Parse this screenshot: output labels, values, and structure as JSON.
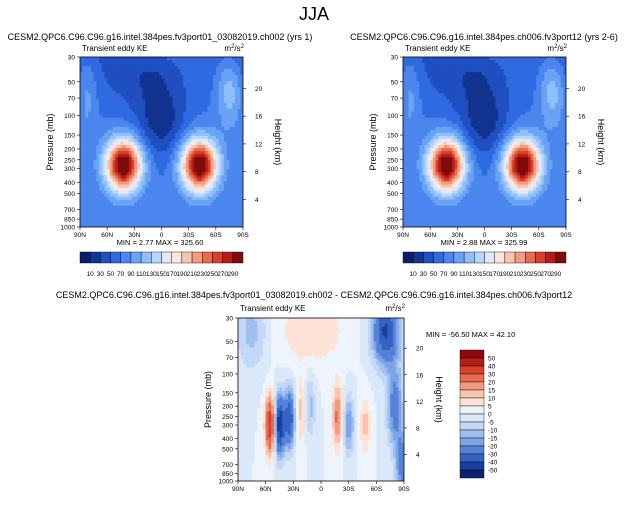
{
  "page_title": "JJA",
  "chart_data": [
    {
      "type": "heatmap",
      "title": "CESM2.QPC6.C96.C96.g16.intel.384pes.fv3port01_03082019.ch002 (yrs 1)",
      "subtitle": "Transient eddy KE",
      "units_base": "m",
      "units_exp": "2",
      "units_slash": "/s",
      "units_exp2": "2",
      "ylabel": "Pressure (mb)",
      "ylabel_right": "Height (km)",
      "xlabel": "",
      "x_ticks": [
        "90N",
        "60N",
        "30N",
        "0",
        "30S",
        "60S",
        "90S"
      ],
      "x_values": [
        90,
        60,
        30,
        0,
        -30,
        -60,
        -90
      ],
      "y_ticks": [
        "30",
        "50",
        "70",
        "100",
        "150",
        "200",
        "250",
        "300",
        "400",
        "500",
        "700",
        "850",
        "1000"
      ],
      "y_values": [
        30,
        50,
        70,
        100,
        150,
        200,
        250,
        300,
        400,
        500,
        700,
        850,
        1000
      ],
      "height_ticks": [
        "20",
        "16",
        "12",
        "8",
        "4"
      ],
      "height_values": [
        20,
        16,
        12,
        8,
        4
      ],
      "ylim": [
        1000,
        30
      ],
      "xlim": [
        90,
        -90
      ],
      "min_label": "MIN = ",
      "min_value": "2.77",
      "max_label": "MAX = ",
      "max_value": "325.60",
      "colorbar_levels": [
        "10",
        "30",
        "50",
        "70",
        "90",
        "110",
        "130",
        "150",
        "170",
        "190",
        "210",
        "230",
        "250",
        "270",
        "290"
      ],
      "field": {
        "kind": "ke",
        "background": 70,
        "features": [
          {
            "lat": 42,
            "p": 280,
            "amp": 250,
            "wlat": 14,
            "wp": 0.38
          },
          {
            "lat": -42,
            "p": 280,
            "amp": 250,
            "wlat": 14,
            "wp": 0.38
          },
          {
            "lat": 0,
            "p": 120,
            "amp": -45,
            "wlat": 18,
            "wp": 0.5
          },
          {
            "lat": 10,
            "p": 40,
            "amp": -55,
            "wlat": 30,
            "wp": 0.6
          },
          {
            "lat": -75,
            "p": 60,
            "amp": 60,
            "wlat": 10,
            "wp": 0.5
          },
          {
            "lat": 82,
            "p": 60,
            "amp": 35,
            "wlat": 8,
            "wp": 0.6
          }
        ]
      }
    },
    {
      "type": "heatmap",
      "title": "CESM2.QPC6.C96.C96.g16.intel.384pes.ch006.fv3port12 (yrs 2-6)",
      "subtitle": "Transient eddy KE",
      "units_base": "m",
      "units_exp": "2",
      "units_slash": "/s",
      "units_exp2": "2",
      "ylabel": "Pressure (mb)",
      "ylabel_right": "Height (km)",
      "xlabel": "",
      "x_ticks": [
        "90N",
        "60N",
        "30N",
        "0",
        "30S",
        "60S",
        "90S"
      ],
      "x_values": [
        90,
        60,
        30,
        0,
        -30,
        -60,
        -90
      ],
      "y_ticks": [
        "30",
        "50",
        "70",
        "100",
        "150",
        "200",
        "250",
        "300",
        "400",
        "500",
        "700",
        "850",
        "1000"
      ],
      "y_values": [
        30,
        50,
        70,
        100,
        150,
        200,
        250,
        300,
        400,
        500,
        700,
        850,
        1000
      ],
      "height_ticks": [
        "20",
        "16",
        "12",
        "8",
        "4"
      ],
      "height_values": [
        20,
        16,
        12,
        8,
        4
      ],
      "ylim": [
        1000,
        30
      ],
      "xlim": [
        90,
        -90
      ],
      "min_label": "MIN = ",
      "min_value": "2.88",
      "max_label": "MAX = ",
      "max_value": "325.99",
      "colorbar_levels": [
        "10",
        "30",
        "50",
        "70",
        "90",
        "110",
        "130",
        "150",
        "170",
        "190",
        "210",
        "230",
        "250",
        "270",
        "290"
      ],
      "field": {
        "kind": "ke",
        "background": 70,
        "features": [
          {
            "lat": 42,
            "p": 280,
            "amp": 250,
            "wlat": 14,
            "wp": 0.38
          },
          {
            "lat": -42,
            "p": 280,
            "amp": 252,
            "wlat": 14,
            "wp": 0.38
          },
          {
            "lat": 0,
            "p": 120,
            "amp": -45,
            "wlat": 18,
            "wp": 0.5
          },
          {
            "lat": 10,
            "p": 40,
            "amp": -55,
            "wlat": 30,
            "wp": 0.6
          },
          {
            "lat": -75,
            "p": 60,
            "amp": 60,
            "wlat": 10,
            "wp": 0.5
          },
          {
            "lat": 82,
            "p": 60,
            "amp": 35,
            "wlat": 8,
            "wp": 0.6
          }
        ]
      }
    },
    {
      "type": "heatmap",
      "title": "CESM2.QPC6.C96.C96.g16.intel.384pes.fv3port01_03082019.ch002 - CESM2.QPC6.C96.C96.g16.intel.384pes.ch006.fv3port12",
      "subtitle": "Transient eddy KE",
      "units_base": "m",
      "units_exp": "2",
      "units_slash": "/s",
      "units_exp2": "2",
      "ylabel": "Pressure (mb)",
      "ylabel_right": "Height (km)",
      "xlabel": "",
      "x_ticks": [
        "90N",
        "60N",
        "30N",
        "0",
        "30S",
        "60S",
        "90S"
      ],
      "x_values": [
        90,
        60,
        30,
        0,
        -30,
        -60,
        -90
      ],
      "y_ticks": [
        "30",
        "50",
        "70",
        "100",
        "150",
        "200",
        "250",
        "300",
        "400",
        "500",
        "700",
        "850",
        "1000"
      ],
      "y_values": [
        30,
        50,
        70,
        100,
        150,
        200,
        250,
        300,
        400,
        500,
        700,
        850,
        1000
      ],
      "height_ticks": [
        "20",
        "16",
        "12",
        "8",
        "4"
      ],
      "height_values": [
        20,
        16,
        12,
        8,
        4
      ],
      "ylim": [
        1000,
        30
      ],
      "xlim": [
        90,
        -90
      ],
      "min_label": "MIN = ",
      "min_value": "-56.50",
      "max_label": "MAX = ",
      "max_value": "42.10",
      "colorbar_levels": [
        "50",
        "40",
        "30",
        "20",
        "15",
        "10",
        "5",
        "0",
        "-5",
        "-10",
        "-15",
        "-20",
        "-30",
        "-40",
        "-50"
      ],
      "field": {
        "kind": "diff",
        "background": 0,
        "features": [
          {
            "lat": 55,
            "p": 300,
            "amp": 38,
            "wlat": 4,
            "wp": 0.45
          },
          {
            "lat": 45,
            "p": 300,
            "amp": -50,
            "wlat": 4,
            "wp": 0.45
          },
          {
            "lat": 34,
            "p": 260,
            "amp": -38,
            "wlat": 4,
            "wp": 0.45
          },
          {
            "lat": 22,
            "p": 220,
            "amp": 12,
            "wlat": 4,
            "wp": 0.5
          },
          {
            "lat": 12,
            "p": 200,
            "amp": -12,
            "wlat": 4,
            "wp": 0.5
          },
          {
            "lat": -18,
            "p": 250,
            "amp": 22,
            "wlat": 4,
            "wp": 0.5
          },
          {
            "lat": -30,
            "p": 300,
            "amp": -20,
            "wlat": 4,
            "wp": 0.45
          },
          {
            "lat": -48,
            "p": 300,
            "amp": 12,
            "wlat": 4,
            "wp": 0.45
          },
          {
            "lat": -70,
            "p": 40,
            "amp": -42,
            "wlat": 10,
            "wp": 0.5
          },
          {
            "lat": -80,
            "p": 200,
            "amp": -25,
            "wlat": 6,
            "wp": 0.6
          },
          {
            "lat": -88,
            "p": 700,
            "amp": -25,
            "wlat": 5,
            "wp": 0.5
          },
          {
            "lat": 75,
            "p": 40,
            "amp": -12,
            "wlat": 12,
            "wp": 0.6
          },
          {
            "lat": 10,
            "p": 40,
            "amp": 10,
            "wlat": 25,
            "wp": 0.5
          }
        ]
      }
    }
  ]
}
